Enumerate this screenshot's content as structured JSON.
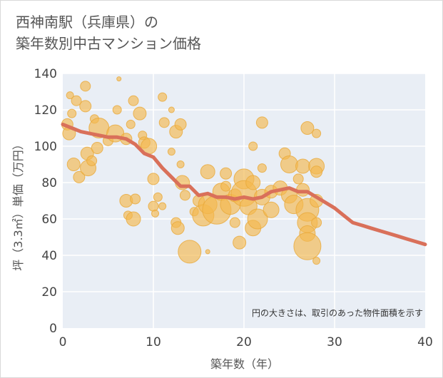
{
  "title": {
    "line1": "西神南駅（兵庫県）の",
    "line2": "築年数別中古マンション価格"
  },
  "colors": {
    "bubble_fill": "#f5b94f",
    "bubble_stroke": "#e8a93a",
    "trend_line": "#d9705a",
    "plot_bg": "#e9eef5",
    "grid": "#ffffff"
  },
  "chart_data": {
    "type": "scatter",
    "xlabel": "築年数（年）",
    "ylabel": "坪（3.3㎡）単価（万円）",
    "xlim": [
      0,
      40
    ],
    "ylim": [
      0,
      140
    ],
    "xticks": [
      "0",
      "10",
      "20",
      "30",
      "40"
    ],
    "yticks": [
      "0",
      "20",
      "40",
      "60",
      "80",
      "100",
      "120",
      "140"
    ],
    "grid": true,
    "note": "円の大きさは、取引のあった物件面積を示す",
    "bubbles": [
      {
        "x": 0.5,
        "y": 112,
        "s": 8
      },
      {
        "x": 0.7,
        "y": 107,
        "s": 9
      },
      {
        "x": 1,
        "y": 118,
        "s": 6
      },
      {
        "x": 0.8,
        "y": 128,
        "s": 5
      },
      {
        "x": 1.5,
        "y": 125,
        "s": 7
      },
      {
        "x": 1.2,
        "y": 90,
        "s": 9
      },
      {
        "x": 1.8,
        "y": 83,
        "s": 8
      },
      {
        "x": 2.5,
        "y": 133,
        "s": 7
      },
      {
        "x": 2.5,
        "y": 122,
        "s": 8
      },
      {
        "x": 2.7,
        "y": 96,
        "s": 9
      },
      {
        "x": 2.8,
        "y": 88,
        "s": 11
      },
      {
        "x": 3.2,
        "y": 92,
        "s": 7
      },
      {
        "x": 3.5,
        "y": 115,
        "s": 6
      },
      {
        "x": 4,
        "y": 110,
        "s": 14
      },
      {
        "x": 3.8,
        "y": 99,
        "s": 8
      },
      {
        "x": 5,
        "y": 103,
        "s": 7
      },
      {
        "x": 5.8,
        "y": 107,
        "s": 12
      },
      {
        "x": 6,
        "y": 120,
        "s": 6
      },
      {
        "x": 6.2,
        "y": 137,
        "s": 3
      },
      {
        "x": 7,
        "y": 104,
        "s": 8
      },
      {
        "x": 7.5,
        "y": 112,
        "s": 6
      },
      {
        "x": 7.8,
        "y": 125,
        "s": 7
      },
      {
        "x": 8.5,
        "y": 118,
        "s": 9
      },
      {
        "x": 8.8,
        "y": 106,
        "s": 6
      },
      {
        "x": 9,
        "y": 102,
        "s": 8
      },
      {
        "x": 9.5,
        "y": 100,
        "s": 11
      },
      {
        "x": 7,
        "y": 70,
        "s": 9
      },
      {
        "x": 7.2,
        "y": 62,
        "s": 6
      },
      {
        "x": 7.8,
        "y": 60,
        "s": 10
      },
      {
        "x": 8,
        "y": 71,
        "s": 7
      },
      {
        "x": 10,
        "y": 82,
        "s": 8
      },
      {
        "x": 10,
        "y": 67,
        "s": 7
      },
      {
        "x": 10.2,
        "y": 63,
        "s": 5
      },
      {
        "x": 10.5,
        "y": 72,
        "s": 6
      },
      {
        "x": 11,
        "y": 127,
        "s": 6
      },
      {
        "x": 11.2,
        "y": 113,
        "s": 7
      },
      {
        "x": 12,
        "y": 120,
        "s": 4
      },
      {
        "x": 11,
        "y": 67,
        "s": 5
      },
      {
        "x": 12,
        "y": 97,
        "s": 5
      },
      {
        "x": 12.5,
        "y": 108,
        "s": 9
      },
      {
        "x": 13,
        "y": 112,
        "s": 8
      },
      {
        "x": 13,
        "y": 90,
        "s": 5
      },
      {
        "x": 13.2,
        "y": 80,
        "s": 10
      },
      {
        "x": 13.5,
        "y": 73,
        "s": 7
      },
      {
        "x": 12.5,
        "y": 58,
        "s": 7
      },
      {
        "x": 12.7,
        "y": 55,
        "s": 9
      },
      {
        "x": 14,
        "y": 42,
        "s": 16
      },
      {
        "x": 14.5,
        "y": 64,
        "s": 6
      },
      {
        "x": 15,
        "y": 70,
        "s": 8
      },
      {
        "x": 15.5,
        "y": 62,
        "s": 15
      },
      {
        "x": 16,
        "y": 68,
        "s": 13
      },
      {
        "x": 16,
        "y": 86,
        "s": 10
      },
      {
        "x": 16,
        "y": 42,
        "s": 3
      },
      {
        "x": 17,
        "y": 65,
        "s": 20
      },
      {
        "x": 17.5,
        "y": 75,
        "s": 12
      },
      {
        "x": 18,
        "y": 85,
        "s": 8
      },
      {
        "x": 18.5,
        "y": 68,
        "s": 14
      },
      {
        "x": 18,
        "y": 78,
        "s": 7
      },
      {
        "x": 19,
        "y": 73,
        "s": 9
      },
      {
        "x": 19,
        "y": 58,
        "s": 7
      },
      {
        "x": 19.5,
        "y": 47,
        "s": 9
      },
      {
        "x": 20,
        "y": 82,
        "s": 14
      },
      {
        "x": 20,
        "y": 74,
        "s": 18
      },
      {
        "x": 20.5,
        "y": 67,
        "s": 12
      },
      {
        "x": 21,
        "y": 55,
        "s": 11
      },
      {
        "x": 21,
        "y": 80,
        "s": 10
      },
      {
        "x": 21,
        "y": 100,
        "s": 6
      },
      {
        "x": 21.5,
        "y": 60,
        "s": 14
      },
      {
        "x": 22,
        "y": 72,
        "s": 11
      },
      {
        "x": 22,
        "y": 113,
        "s": 8
      },
      {
        "x": 22,
        "y": 88,
        "s": 6
      },
      {
        "x": 23,
        "y": 75,
        "s": 9
      },
      {
        "x": 23,
        "y": 65,
        "s": 11
      },
      {
        "x": 24,
        "y": 77,
        "s": 10
      },
      {
        "x": 24.5,
        "y": 96,
        "s": 8
      },
      {
        "x": 25,
        "y": 90,
        "s": 12
      },
      {
        "x": 25,
        "y": 73,
        "s": 11
      },
      {
        "x": 25.5,
        "y": 68,
        "s": 13
      },
      {
        "x": 26,
        "y": 82,
        "s": 7
      },
      {
        "x": 26.5,
        "y": 89,
        "s": 10
      },
      {
        "x": 26.5,
        "y": 76,
        "s": 9
      },
      {
        "x": 27,
        "y": 110,
        "s": 9
      },
      {
        "x": 27,
        "y": 65,
        "s": 16
      },
      {
        "x": 27,
        "y": 58,
        "s": 14
      },
      {
        "x": 27,
        "y": 52,
        "s": 11
      },
      {
        "x": 27,
        "y": 45,
        "s": 19
      },
      {
        "x": 28,
        "y": 107,
        "s": 6
      },
      {
        "x": 28,
        "y": 89,
        "s": 11
      },
      {
        "x": 28,
        "y": 86,
        "s": 8
      },
      {
        "x": 28,
        "y": 70,
        "s": 9
      },
      {
        "x": 28,
        "y": 37,
        "s": 5
      },
      {
        "x": 28,
        "y": 58,
        "s": 7
      }
    ],
    "series": [
      {
        "x": [
          0,
          1,
          2,
          3,
          4,
          5,
          6,
          7,
          8,
          9,
          10,
          11,
          12,
          13,
          14,
          15,
          16,
          17,
          18,
          19,
          20,
          21,
          22,
          23,
          24,
          25,
          26,
          27,
          28,
          29,
          30,
          31,
          32,
          33,
          34,
          35,
          36,
          37,
          38,
          39,
          40
        ],
        "y": [
          112,
          110,
          108,
          107,
          106,
          105,
          105,
          104,
          101,
          96,
          94,
          88,
          83,
          78,
          78,
          73,
          74,
          72,
          72,
          71,
          72,
          71,
          72,
          75,
          76,
          77,
          75,
          75,
          72,
          69,
          66,
          62,
          58,
          56.5,
          55,
          53.5,
          52,
          50.5,
          49,
          47.5,
          46
        ]
      }
    ]
  }
}
